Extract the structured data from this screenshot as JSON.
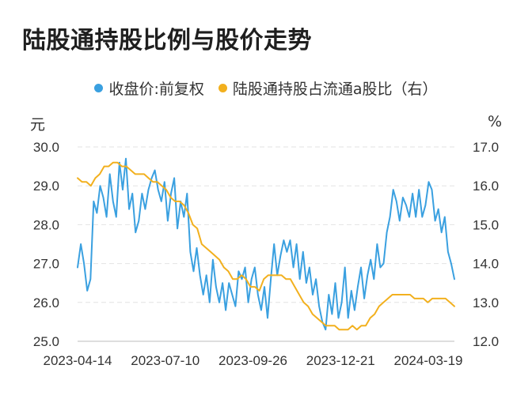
{
  "chart_data": {
    "type": "line",
    "title": "陆股通持股比例与股价走势",
    "left_unit": "元",
    "right_unit": "%",
    "x_ticks": [
      "2023-04-14",
      "2023-07-10",
      "2023-09-26",
      "2023-12-21",
      "2024-03-19"
    ],
    "y_left": {
      "ticks": [
        "30.0",
        "29.0",
        "28.0",
        "27.0",
        "26.0",
        "25.0"
      ],
      "min": 25.0,
      "max": 30.0
    },
    "y_right": {
      "ticks": [
        "17.0",
        "16.0",
        "15.0",
        "14.0",
        "13.0",
        "12.0"
      ],
      "min": 12.0,
      "max": 17.0
    },
    "grid": true,
    "legend_position": "top",
    "series": [
      {
        "name": "收盘价:前复权",
        "axis": "left",
        "color": "#3aa0e0",
        "values": [
          26.9,
          27.5,
          27.0,
          26.3,
          26.6,
          28.6,
          28.3,
          29.0,
          28.7,
          28.2,
          29.3,
          28.6,
          28.2,
          29.6,
          28.9,
          29.7,
          28.4,
          28.8,
          27.8,
          28.1,
          28.8,
          28.4,
          28.9,
          29.2,
          29.4,
          28.9,
          28.6,
          29.1,
          28.1,
          28.8,
          29.2,
          27.9,
          28.6,
          28.2,
          28.8,
          27.3,
          26.8,
          27.4,
          26.7,
          26.2,
          26.7,
          26.0,
          27.1,
          26.4,
          26.0,
          26.5,
          25.8,
          26.5,
          26.2,
          25.9,
          26.8,
          26.6,
          26.9,
          26.0,
          26.6,
          26.9,
          26.2,
          25.8,
          26.4,
          25.6,
          26.6,
          27.5,
          26.7,
          27.2,
          27.6,
          27.3,
          27.6,
          26.9,
          27.5,
          26.6,
          27.3,
          26.5,
          26.9,
          26.2,
          26.6,
          25.9,
          25.5,
          25.3,
          26.2,
          25.7,
          26.5,
          25.6,
          26.0,
          26.9,
          25.6,
          26.3,
          25.8,
          26.4,
          26.9,
          26.1,
          26.7,
          27.1,
          26.6,
          27.5,
          26.9,
          27.0,
          27.8,
          28.2,
          28.9,
          28.6,
          28.1,
          28.7,
          28.5,
          28.2,
          28.8,
          28.2,
          28.9,
          28.2,
          28.5,
          29.1,
          28.9,
          28.1,
          28.4,
          27.8,
          28.2,
          27.3,
          27.0,
          26.6
        ],
        "note": "estimated from plot"
      },
      {
        "name": "陆股通持股占流通a股比（右）",
        "axis": "right",
        "color": "#f2b01e",
        "values": [
          16.2,
          16.1,
          16.1,
          16.0,
          16.2,
          16.3,
          16.5,
          16.5,
          16.6,
          16.6,
          16.5,
          16.5,
          16.4,
          16.3,
          16.3,
          16.3,
          16.2,
          16.1,
          16.1,
          16.0,
          15.9,
          15.7,
          15.6,
          15.6,
          15.5,
          15.3,
          15.0,
          14.9,
          14.5,
          14.4,
          14.3,
          14.2,
          14.1,
          13.9,
          13.8,
          13.6,
          13.6,
          13.7,
          13.6,
          13.4,
          13.4,
          13.3,
          13.6,
          13.7,
          13.7,
          13.7,
          13.7,
          13.6,
          13.6,
          13.4,
          13.2,
          13.0,
          12.9,
          12.7,
          12.6,
          12.5,
          12.4,
          12.4,
          12.4,
          12.3,
          12.3,
          12.3,
          12.4,
          12.3,
          12.4,
          12.4,
          12.6,
          12.7,
          12.9,
          13.0,
          13.1,
          13.2,
          13.2,
          13.2,
          13.2,
          13.2,
          13.1,
          13.1,
          13.1,
          13.0,
          13.1,
          13.1,
          13.1,
          13.1,
          13.0,
          12.9
        ],
        "note": "estimated from plot"
      }
    ]
  }
}
